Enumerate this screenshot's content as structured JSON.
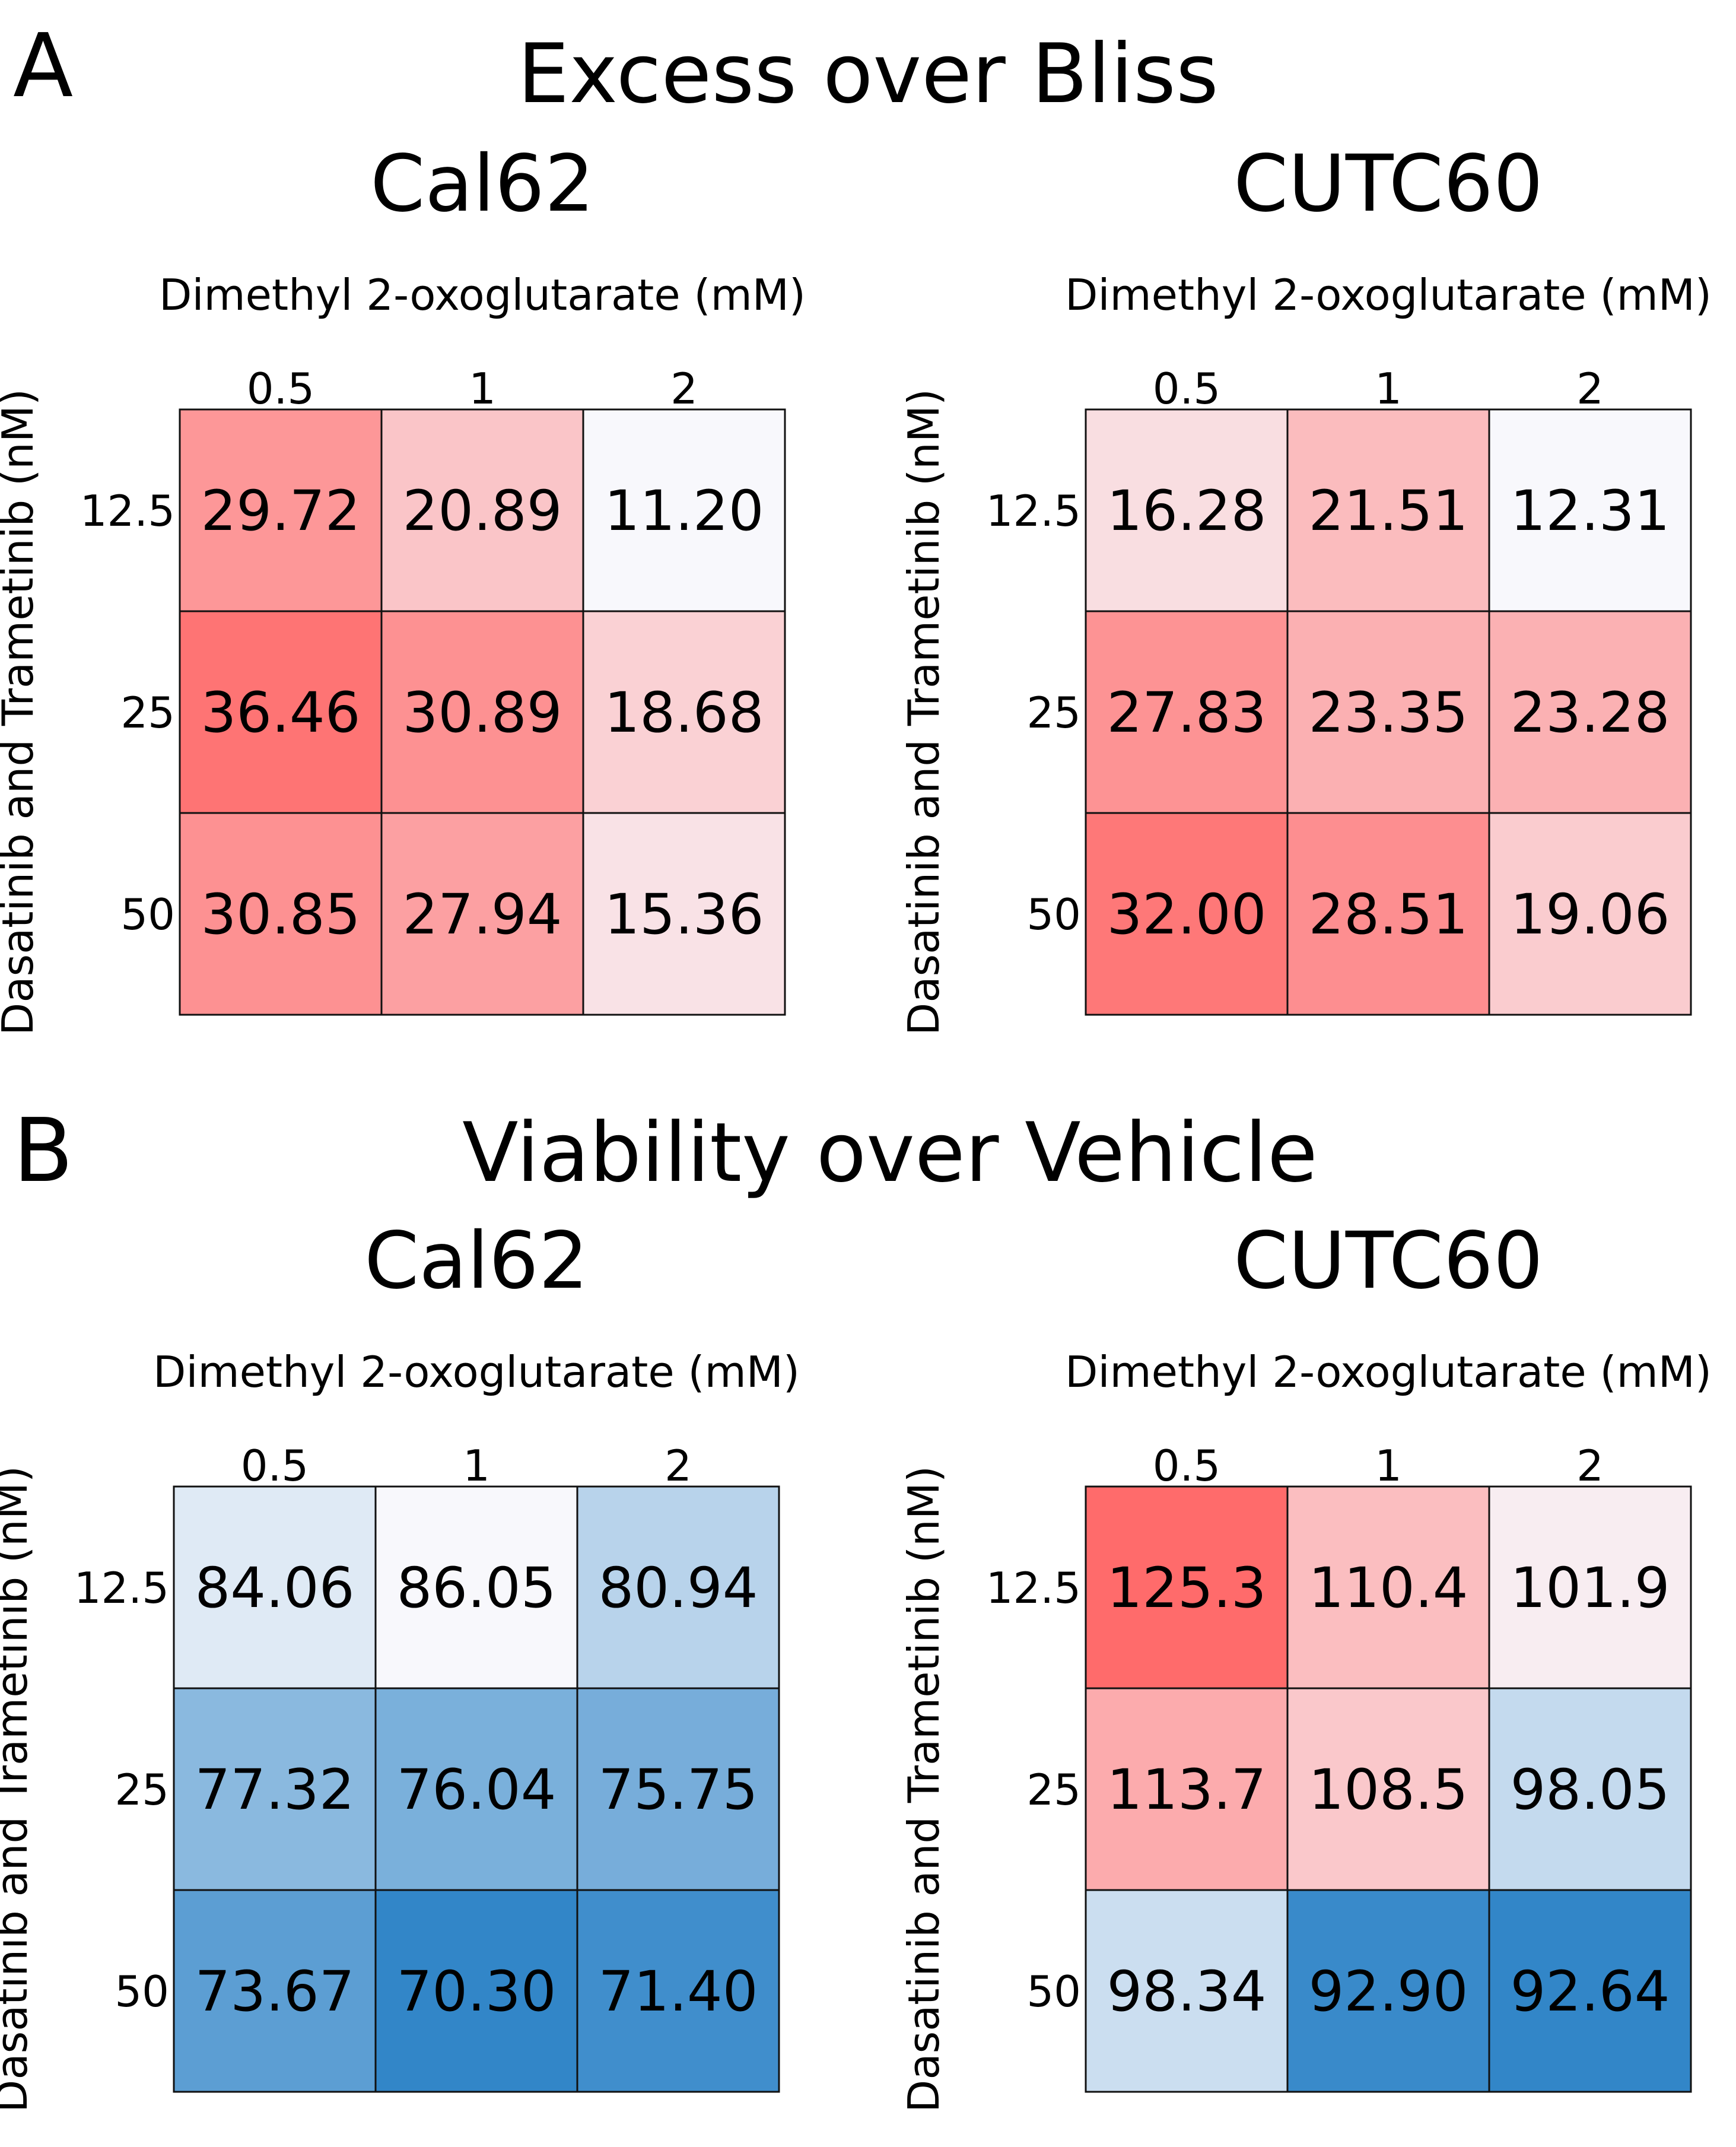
{
  "panels": [
    {
      "letter": "A",
      "title": "Excess over Bliss"
    },
    {
      "letter": "B",
      "title": "Viability over Vehicle"
    }
  ],
  "chart_data": [
    {
      "type": "heatmap",
      "panel": "A",
      "title": "Cal62",
      "xlabel": "Dimethyl 2-oxoglutarate (mM)",
      "ylabel": "Dasatinib and Trametinib (nM)",
      "x_ticks": [
        "0.5",
        "1",
        "2"
      ],
      "y_ticks": [
        "12.5",
        "25",
        "50"
      ],
      "values": [
        [
          29.72,
          20.89,
          11.2
        ],
        [
          36.46,
          30.89,
          18.68
        ],
        [
          30.85,
          27.94,
          15.36
        ]
      ],
      "labels": [
        [
          "29.72",
          "20.89",
          "11.20"
        ],
        [
          "36.46",
          "30.89",
          "18.68"
        ],
        [
          "30.85",
          "27.94",
          "15.36"
        ]
      ],
      "colormap": "bwr",
      "center": 11.2,
      "vmax": 40
    },
    {
      "type": "heatmap",
      "panel": "A",
      "title": "CUTC60",
      "xlabel": "Dimethyl 2-oxoglutarate (mM)",
      "ylabel": "Dasatinib and Trametinib (nM)",
      "x_ticks": [
        "0.5",
        "1",
        "2"
      ],
      "y_ticks": [
        "12.5",
        "25",
        "50"
      ],
      "values": [
        [
          16.28,
          21.51,
          12.31
        ],
        [
          27.83,
          23.35,
          23.28
        ],
        [
          32.0,
          28.51,
          19.06
        ]
      ],
      "labels": [
        [
          "16.28",
          "21.51",
          "12.31"
        ],
        [
          "27.83",
          "23.35",
          "23.28"
        ],
        [
          "32.00",
          "28.51",
          "19.06"
        ]
      ],
      "colormap": "bwr",
      "center": 12.3,
      "vmax": 35.5
    },
    {
      "type": "heatmap",
      "panel": "B",
      "title": "Cal62",
      "xlabel": "Dimethyl 2-oxoglutarate (mM)",
      "ylabel": "Dasatinib and Trametinib (nM)",
      "x_ticks": [
        "0.5",
        "1",
        "2"
      ],
      "y_ticks": [
        "12.5",
        "25",
        "50"
      ],
      "values": [
        [
          84.06,
          86.05,
          80.94
        ],
        [
          77.32,
          76.04,
          75.75
        ],
        [
          73.67,
          70.3,
          71.4
        ]
      ],
      "labels": [
        [
          "84.06",
          "86.05",
          "80.94"
        ],
        [
          "77.32",
          "76.04",
          "75.75"
        ],
        [
          "73.67",
          "70.30",
          "71.40"
        ]
      ],
      "colormap": "blues",
      "center": 86.05,
      "vmin": 70.3
    },
    {
      "type": "heatmap",
      "panel": "B",
      "title": "CUTC60",
      "xlabel": "Dimethyl 2-oxoglutarate (mM)",
      "ylabel": "Dasatinib and Trametinib (nM)",
      "x_ticks": [
        "0.5",
        "1",
        "2"
      ],
      "y_ticks": [
        "12.5",
        "25",
        "50"
      ],
      "values": [
        [
          125.3,
          110.4,
          101.9
        ],
        [
          113.7,
          108.5,
          98.05
        ],
        [
          98.34,
          92.9,
          92.64
        ]
      ],
      "labels": [
        [
          "125.3",
          "110.4",
          "101.9"
        ],
        [
          "113.7",
          "108.5",
          "98.05"
        ],
        [
          "98.34",
          "92.90",
          "92.64"
        ]
      ],
      "colormap": "bwr",
      "center": 100,
      "vmax": 127,
      "vmin": 92.64
    }
  ]
}
